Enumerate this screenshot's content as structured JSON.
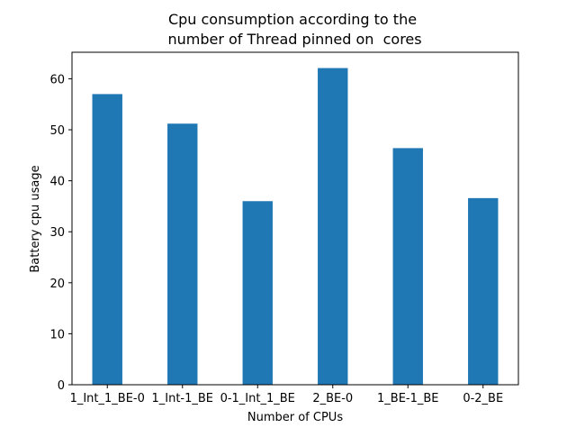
{
  "chart_data": {
    "type": "bar",
    "title_lines": [
      "Cpu consumption according to the",
      " number of Thread pinned on  cores"
    ],
    "xlabel": "Number of CPUs",
    "ylabel": "Battery cpu usage",
    "categories": [
      "1_Int_1_BE-0",
      "1_Int-1_BE",
      "0-1_Int_1_BE",
      "2_BE-0",
      "1_BE-1_BE",
      "0-2_BE"
    ],
    "values": [
      57,
      51.2,
      36,
      62.1,
      46.4,
      36.6
    ],
    "ylim": [
      0,
      65.2
    ],
    "yticks": [
      0,
      10,
      20,
      30,
      40,
      50,
      60
    ],
    "grid": false,
    "bar_color": "#1f77b4"
  }
}
